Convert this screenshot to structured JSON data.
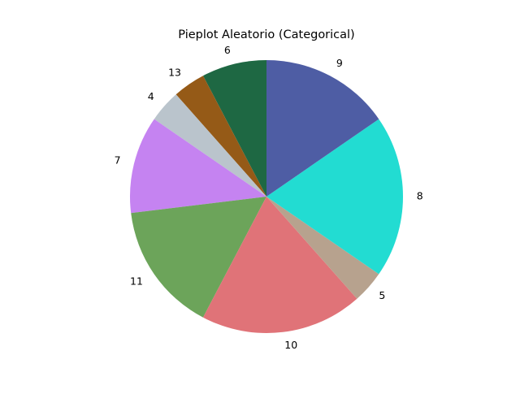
{
  "chart_data": {
    "type": "pie",
    "title": "Pieplot Aleatorio (Categorical)",
    "start_angle_deg": 90,
    "direction": "counterclockwise",
    "slices": [
      {
        "label": "6",
        "value": 8,
        "color": "#1e6843"
      },
      {
        "label": "13",
        "value": 4,
        "color": "#955a17"
      },
      {
        "label": "4",
        "value": 4,
        "color": "#bac4cc"
      },
      {
        "label": "7",
        "value": 12,
        "color": "#c583f1"
      },
      {
        "label": "11",
        "value": 16,
        "color": "#6ca45a"
      },
      {
        "label": "10",
        "value": 20,
        "color": "#e07378"
      },
      {
        "label": "5",
        "value": 4,
        "color": "#b7a28e"
      },
      {
        "label": "8",
        "value": 20,
        "color": "#22dcd2"
      },
      {
        "label": "9",
        "value": 16,
        "color": "#4e5da4"
      }
    ]
  }
}
